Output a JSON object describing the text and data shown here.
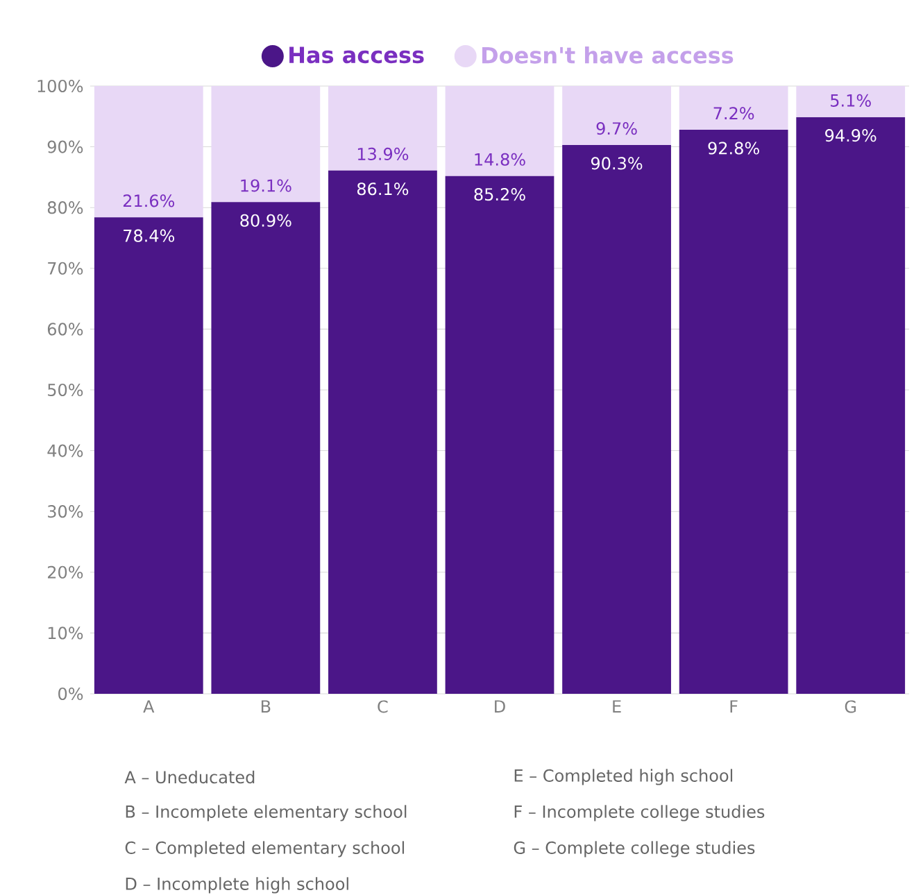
{
  "chart_data": {
    "type": "bar",
    "stacked": true,
    "categories": [
      "A",
      "B",
      "C",
      "D",
      "E",
      "F",
      "G"
    ],
    "series": [
      {
        "name": "Has access",
        "color": "#4b1688",
        "values": [
          78.4,
          80.9,
          86.1,
          85.2,
          90.3,
          92.8,
          94.9
        ],
        "value_labels": [
          "78.4%",
          "80.9%",
          "86.1%",
          "85.2%",
          "90.3%",
          "92.8%",
          "94.9%"
        ]
      },
      {
        "name": "Doesn't have access",
        "color": "#e8d8f6",
        "values": [
          21.6,
          19.1,
          13.9,
          14.8,
          9.7,
          7.2,
          5.1
        ],
        "value_labels": [
          "21.6%",
          "19.1%",
          "13.9%",
          "14.8%",
          "9.7%",
          "7.2%",
          "5.1%"
        ]
      }
    ],
    "ylim": [
      0,
      100
    ],
    "yticks": [
      {
        "value": 0,
        "label": "0%"
      },
      {
        "value": 10,
        "label": "10%"
      },
      {
        "value": 20,
        "label": "20%"
      },
      {
        "value": 30,
        "label": "30%"
      },
      {
        "value": 40,
        "label": "40%"
      },
      {
        "value": 50,
        "label": "50%"
      },
      {
        "value": 60,
        "label": "60%"
      },
      {
        "value": 70,
        "label": "70%"
      },
      {
        "value": 80,
        "label": "80%"
      },
      {
        "value": 90,
        "label": "90%"
      },
      {
        "value": 100,
        "label": "100%"
      }
    ],
    "grid": "y",
    "legend": "top",
    "annotations": [
      "A – Uneducated",
      "B – Incomplete elementary school",
      "C – Completed elementary school",
      "D – Incomplete high school",
      "E – Completed high school",
      "F – Incomplete college studies",
      "G – Complete college studies"
    ]
  }
}
